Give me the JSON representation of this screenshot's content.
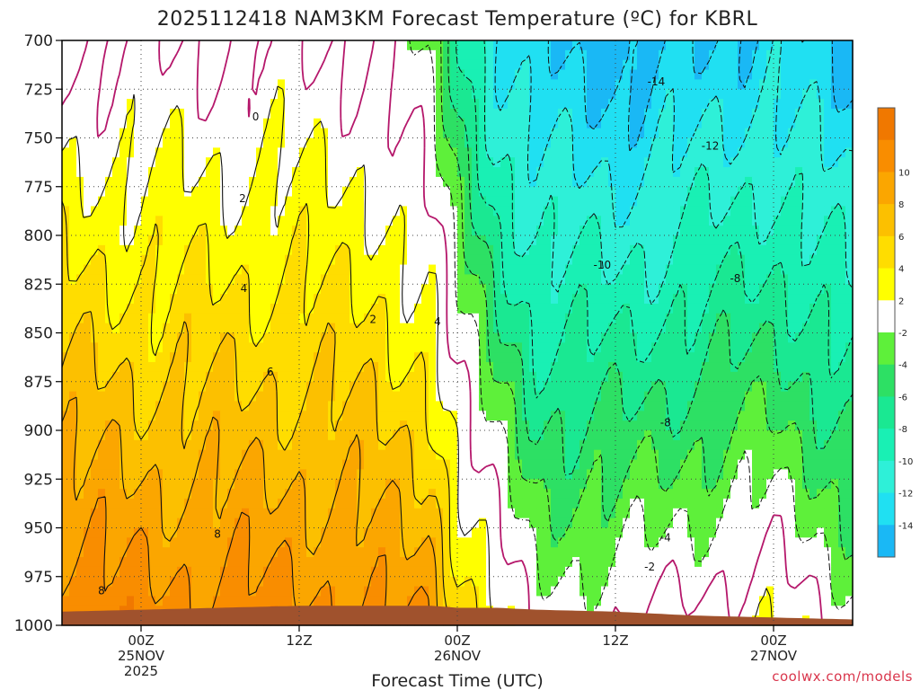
{
  "chart_data": {
    "type": "heatmap",
    "title": "2025112418 NAM3KM Forecast Temperature (ºC) for KBRL",
    "xlabel": "Forecast Time (UTC)",
    "ylabel": "",
    "credit": "coolwx.com/models",
    "y_axis": {
      "unit": "hPa",
      "range": [
        700,
        1000
      ],
      "ticks": [
        "700",
        "725",
        "750",
        "775",
        "800",
        "825",
        "850",
        "875",
        "900",
        "925",
        "950",
        "975",
        "1000"
      ]
    },
    "x_axis": {
      "unit": "hours since 2025-11-24 18Z",
      "range": [
        0,
        60
      ],
      "ticks": [
        {
          "hour": 6,
          "lines": [
            "00Z",
            "25NOV",
            "2025"
          ]
        },
        {
          "hour": 18,
          "lines": [
            "12Z"
          ]
        },
        {
          "hour": 30,
          "lines": [
            "00Z",
            "26NOV"
          ]
        },
        {
          "hour": 42,
          "lines": [
            "12Z"
          ]
        },
        {
          "hour": 54,
          "lines": [
            "00Z",
            "27NOV"
          ]
        }
      ]
    },
    "colorbar": {
      "bins": [
        {
          "min": -16,
          "max": -14,
          "color": "#1ab8f5"
        },
        {
          "min": -14,
          "max": -12,
          "color": "#20e0f2"
        },
        {
          "min": -12,
          "max": -10,
          "color": "#2ef0d8"
        },
        {
          "min": -10,
          "max": -8,
          "color": "#19f0b4"
        },
        {
          "min": -8,
          "max": -6,
          "color": "#1ae892"
        },
        {
          "min": -6,
          "max": -4,
          "color": "#2de064"
        },
        {
          "min": -4,
          "max": -2,
          "color": "#5ef03a"
        },
        {
          "min": -2,
          "max": 2,
          "color": "#ffffff"
        },
        {
          "min": 2,
          "max": 4,
          "color": "#ffff00"
        },
        {
          "min": 4,
          "max": 6,
          "color": "#ffdd00"
        },
        {
          "min": 6,
          "max": 8,
          "color": "#fcc000"
        },
        {
          "min": 8,
          "max": 10,
          "color": "#fba600"
        },
        {
          "min": 10,
          "max": 12,
          "color": "#f98d00"
        },
        {
          "min": 12,
          "max": 14,
          "color": "#f07800"
        }
      ],
      "tick_labels": [
        "10",
        "8",
        "6",
        "4",
        "2",
        "-2",
        "-4",
        "-6",
        "-8",
        "-10",
        "-12",
        "-14"
      ]
    },
    "contour_labels": [
      {
        "value": "0",
        "hour": 14.7,
        "p": 741
      },
      {
        "value": "2",
        "hour": 13.7,
        "p": 783
      },
      {
        "value": "4",
        "hour": 13.8,
        "p": 829
      },
      {
        "value": "2",
        "hour": 23.6,
        "p": 845
      },
      {
        "value": "4",
        "hour": 28.5,
        "p": 846
      },
      {
        "value": "6",
        "hour": 15.8,
        "p": 872
      },
      {
        "value": "8",
        "hour": 11.8,
        "p": 955
      },
      {
        "value": "8",
        "hour": 3.0,
        "p": 984
      },
      {
        "value": "-14",
        "hour": 45.1,
        "p": 723
      },
      {
        "value": "-12",
        "hour": 49.2,
        "p": 756
      },
      {
        "value": "-10",
        "hour": 41.0,
        "p": 817
      },
      {
        "value": "-8",
        "hour": 51.1,
        "p": 824
      },
      {
        "value": "-8",
        "hour": 45.8,
        "p": 898
      },
      {
        "value": "-4",
        "hour": 45.8,
        "p": 957
      },
      {
        "value": "-2",
        "hour": 44.6,
        "p": 972
      }
    ],
    "profiles": [
      {
        "hour": 0,
        "t700": 0,
        "t1000": 12,
        "ground": 993
      },
      {
        "hour": 6,
        "t700": 0,
        "t1000": 11,
        "ground": 992
      },
      {
        "hour": 12,
        "t700": 0,
        "t1000": 11,
        "ground": 991
      },
      {
        "hour": 18,
        "t700": 0,
        "t1000": 11,
        "ground": 990
      },
      {
        "hour": 24,
        "t700": 0,
        "t1000": 10,
        "ground": 990
      },
      {
        "hour": 28,
        "t700": -3,
        "t1000": 10,
        "ground": 990
      },
      {
        "hour": 30,
        "t700": -7,
        "t1000": 6,
        "ground": 991
      },
      {
        "hour": 33,
        "t700": -12,
        "t1000": 3,
        "ground": 991
      },
      {
        "hour": 36,
        "t700": -14,
        "t1000": -1,
        "ground": 992
      },
      {
        "hour": 42,
        "t700": -15,
        "t1000": 0,
        "ground": 993
      },
      {
        "hour": 48,
        "t700": -14,
        "t1000": 1,
        "ground": 995
      },
      {
        "hour": 54,
        "t700": -13,
        "t1000": 2,
        "ground": 996
      },
      {
        "hour": 60,
        "t700": -15,
        "t1000": -1,
        "ground": 997
      }
    ]
  }
}
